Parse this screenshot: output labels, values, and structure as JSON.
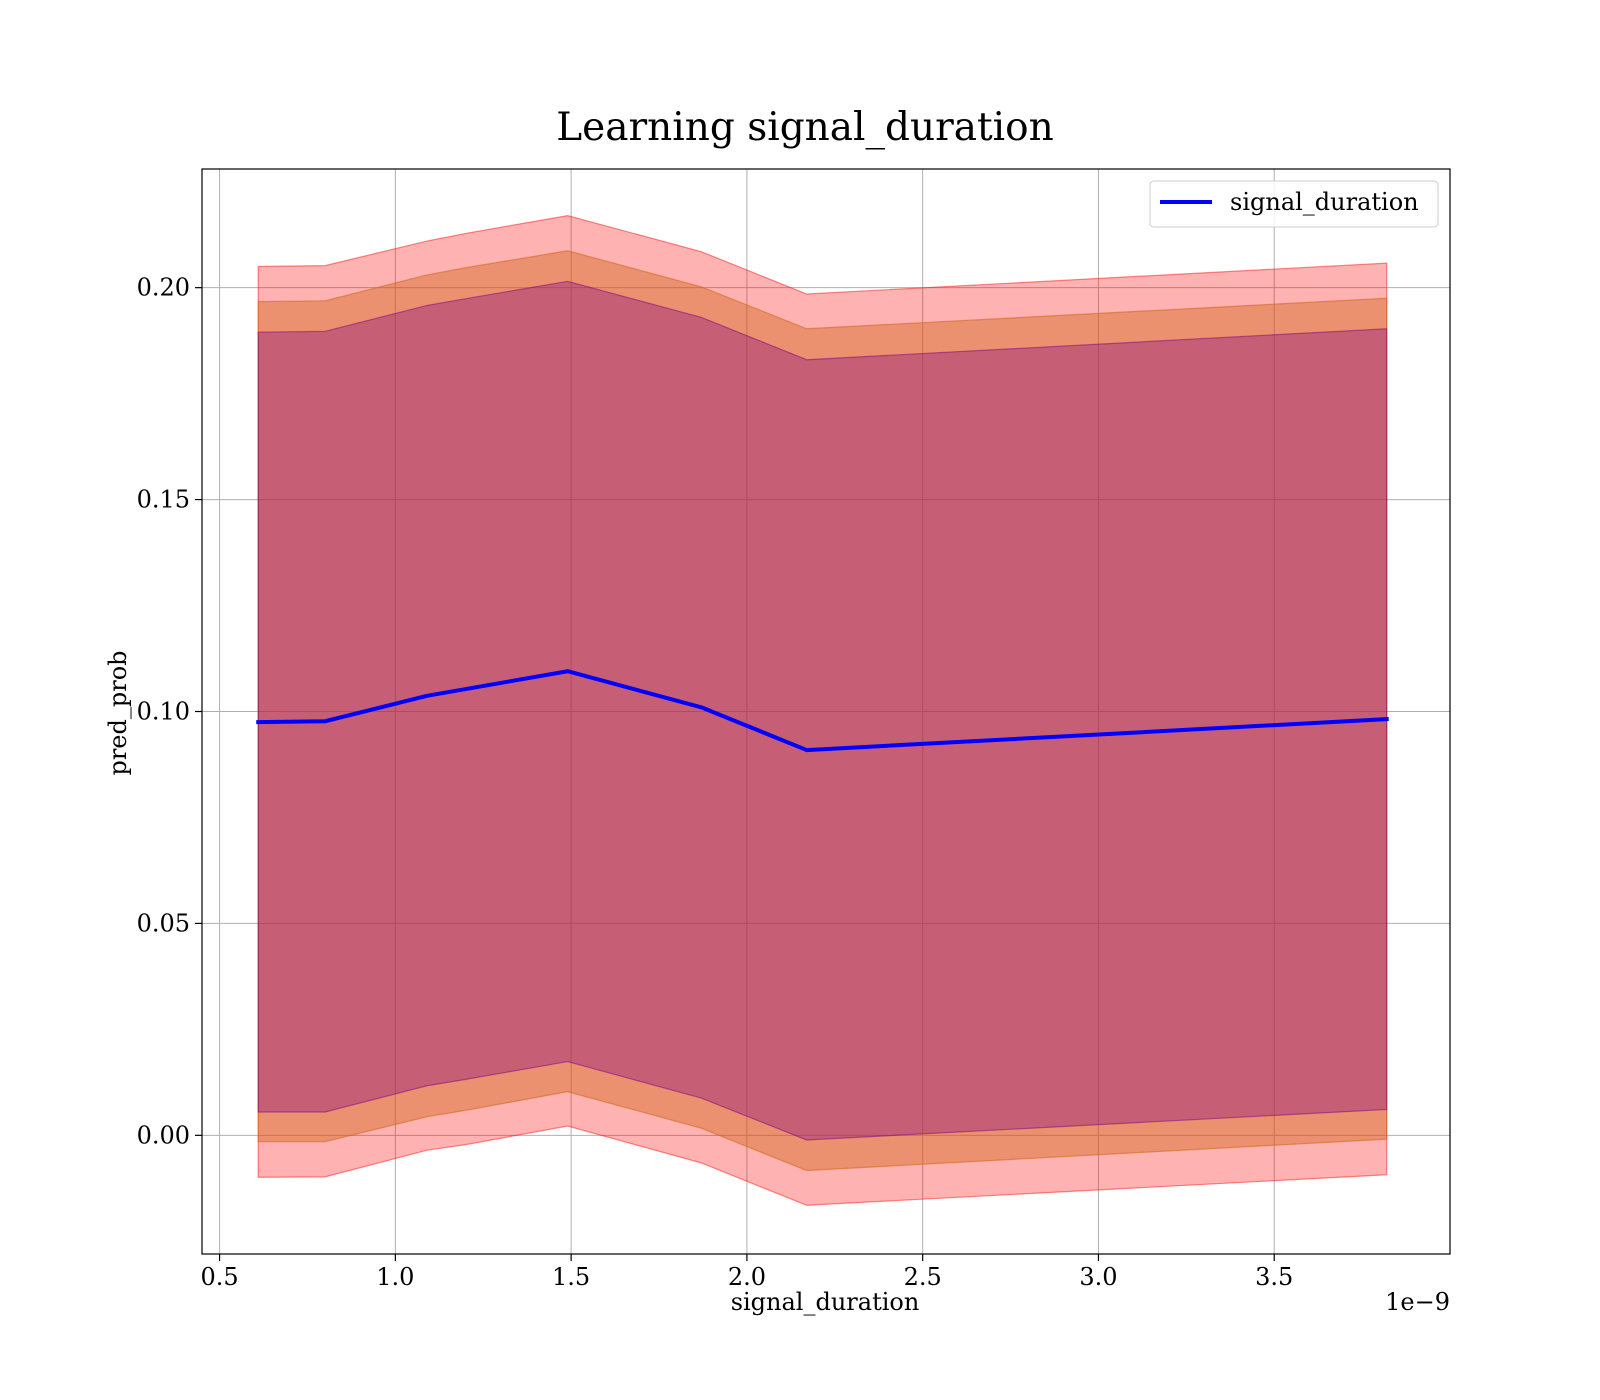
{
  "chart_data": {
    "type": "line",
    "title": "Learning signal_duration",
    "xlabel": "signal_duration",
    "ylabel": "pred_prob",
    "x_offset_label": "1e−9",
    "xlim": [
      0.45,
      4.0
    ],
    "ylim": [
      -0.028,
      0.228
    ],
    "xticks": [
      0.5,
      1.0,
      1.5,
      2.0,
      2.5,
      3.0,
      3.5
    ],
    "xtick_labels": [
      "0.5",
      "1.0",
      "1.5",
      "2.0",
      "2.5",
      "3.0",
      "3.5"
    ],
    "yticks": [
      0.0,
      0.05,
      0.1,
      0.15,
      0.2
    ],
    "ytick_labels": [
      "0.00",
      "0.05",
      "0.10",
      "0.15",
      "0.20"
    ],
    "grid": true,
    "legend_position": "top-right",
    "x": [
      0.61,
      0.8,
      1.09,
      1.2,
      1.49,
      1.87,
      2.17,
      3.82
    ],
    "series": [
      {
        "name": "signal_duration",
        "color": "#0000ff",
        "values": [
          0.0975,
          0.0977,
          0.1037,
          0.1053,
          0.1095,
          0.101,
          0.0909,
          0.0982
        ]
      }
    ],
    "bands": [
      {
        "lower": [
          -0.0099,
          -0.0098,
          -0.0035,
          -0.0022,
          0.0022,
          -0.0065,
          -0.0165,
          -0.0093
        ],
        "upper": [
          0.205,
          0.2052,
          0.211,
          0.2128,
          0.217,
          0.2085,
          0.1985,
          0.2058
        ],
        "color": "#ff0000",
        "opacity": 0.3
      },
      {
        "lower": [
          -0.0015,
          -0.0015,
          0.0044,
          0.0059,
          0.0103,
          0.0017,
          -0.0083,
          -0.0009
        ],
        "upper": [
          0.1967,
          0.1969,
          0.203,
          0.2047,
          0.2087,
          0.2002,
          0.1903,
          0.1975
        ],
        "color": "#d2691e",
        "opacity": 0.45
      },
      {
        "lower": [
          0.0055,
          0.0055,
          0.0117,
          0.0132,
          0.0174,
          0.0088,
          -0.0011,
          0.0061
        ],
        "upper": [
          0.1895,
          0.1897,
          0.1958,
          0.1974,
          0.2015,
          0.193,
          0.183,
          0.1903
        ],
        "color": "#800080",
        "opacity": 0.35
      }
    ]
  }
}
